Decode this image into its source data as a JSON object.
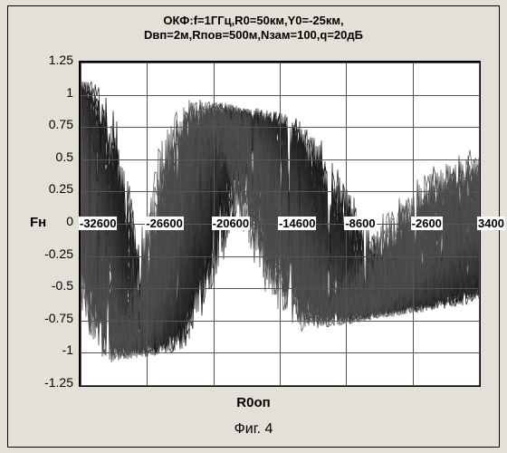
{
  "title": {
    "line1": "ОКФ:f=1ГГц,R0=50км,Y0=-25км,",
    "line2": "Dвп=2м,Rпов=500м,Nзам=100,q=20дБ",
    "fontsize": 13
  },
  "ylabel": "Fн",
  "xlabel": "R0оп",
  "caption": "Фиг. 4",
  "chart": {
    "type": "line",
    "background_color": "#ffffff",
    "grid_color": "#555555",
    "frame_border": "#000000",
    "ylim": [
      -1.25,
      1.25
    ],
    "yticks": [
      1.25,
      1,
      0.75,
      0.5,
      0.25,
      0,
      -0.25,
      -0.5,
      -0.75,
      -1,
      -1.25
    ],
    "xlim": [
      -32600,
      3400
    ],
    "xticks": [
      -32600,
      -26600,
      -20600,
      -14600,
      -8600,
      -2600,
      3400
    ],
    "label_fontsize": 15,
    "tick_fontsize": 14,
    "xtick_fontsize": 13,
    "line_color_base": "#2a2a2a",
    "line_width": 0.7,
    "n_traces": 80,
    "chirp": {
      "phase0": 0.0,
      "f0": 0.012,
      "f1": 0.0024,
      "amp0": 1.0,
      "amp1": 0.55
    },
    "noise_phase": 0.25,
    "noise_amp": 0.12
  }
}
